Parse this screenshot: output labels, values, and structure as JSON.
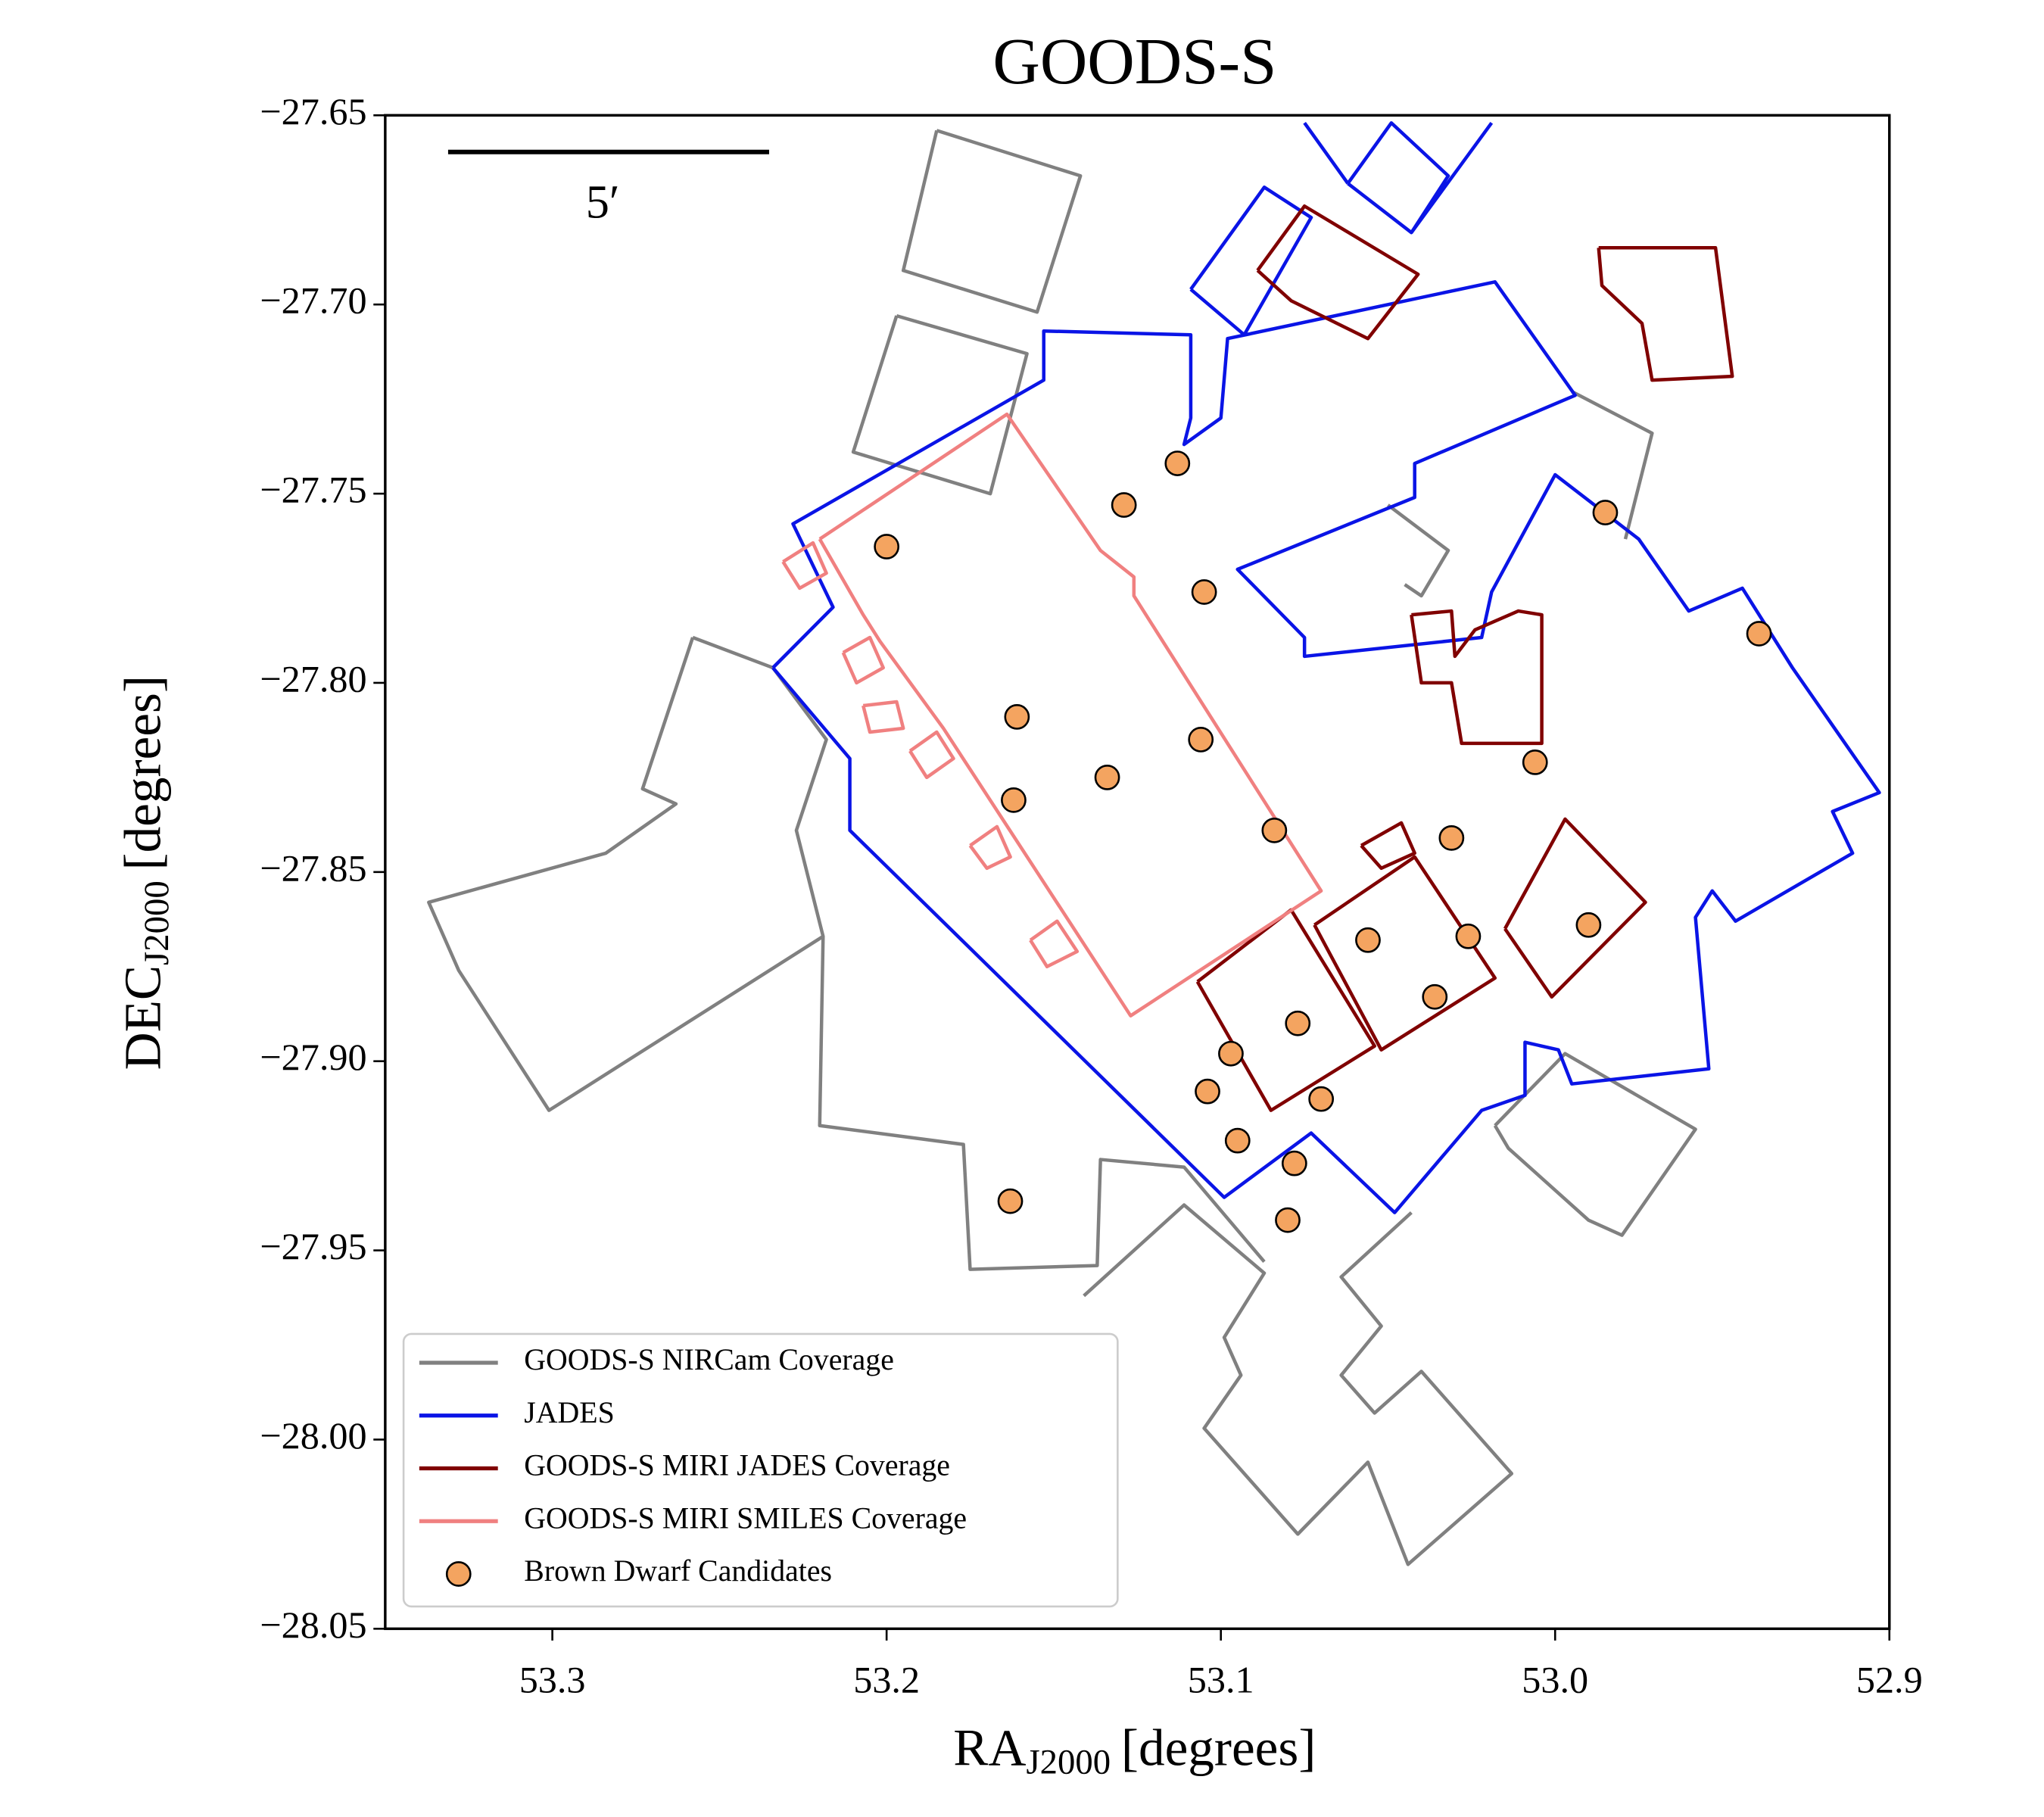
{
  "chart_data": {
    "type": "scatter",
    "title": "GOODS-S",
    "x_label": {
      "main": "RA",
      "sub": "J2000",
      "unit": "[degrees]"
    },
    "y_label": {
      "main": "DEC",
      "sub": "J2000",
      "unit": "[degrees]"
    },
    "scale_bar_label": "5′",
    "xlim": [
      53.35,
      52.9
    ],
    "ylim": [
      -28.05,
      -27.65
    ],
    "xticks": [
      53.3,
      53.2,
      53.1,
      {
        "value": 53,
        "label": "53.0"
      },
      52.9
    ],
    "yticks": [
      {
        "value": -27.65,
        "label": "−27.65"
      },
      {
        "value": -27.7,
        "label": "−27.70"
      },
      {
        "value": -27.75,
        "label": "−27.75"
      },
      {
        "value": -27.8,
        "label": "−27.80"
      },
      {
        "value": -27.85,
        "label": "−27.85"
      },
      {
        "value": -27.9,
        "label": "−27.90"
      },
      {
        "value": -27.95,
        "label": "−27.95"
      },
      {
        "value": -28,
        "label": "−28.00"
      },
      {
        "value": -28.05,
        "label": "−28.05"
      }
    ],
    "legend": "lower left",
    "series": [
      {
        "name": "GOODS-S NIRCam Coverage",
        "type": "line",
        "color": "#808080",
        "x": [
          53.258,
          53.234,
          53.218,
          53.227,
          53.219,
          53.301,
          53.328,
          53.337,
          53.284,
          53.263,
          53.273,
          53.258,
          null,
          53.219,
          53.22,
          53.177,
          53.175,
          53.137,
          53.136,
          53.111,
          53.087,
          null,
          53.141,
          53.111,
          53.087,
          53.099,
          53.094,
          53.105,
          53.077,
          53.056,
          53.044,
          53.013,
          53.04,
          53.054,
          53.064,
          53.052,
          53.064,
          53.043,
          null,
          53.018,
          52.997,
          52.958,
          52.98,
          52.99,
          53.014,
          53.018,
          null,
          52.995,
          52.971,
          52.979,
          null,
          53.05,
          53.032,
          53.04,
          53.045,
          null,
          53.185,
          53.142,
          53.155,
          53.195,
          53.185,
          null,
          53.197,
          53.158,
          53.169,
          53.21,
          53.197
        ],
        "y": [
          -27.788,
          -27.796,
          -27.815,
          -27.839,
          -27.867,
          -27.913,
          -27.876,
          -27.858,
          -27.845,
          -27.832,
          -27.828,
          -27.788,
          null,
          -27.867,
          -27.917,
          -27.922,
          -27.955,
          -27.954,
          -27.926,
          -27.928,
          -27.953,
          null,
          -27.962,
          -27.938,
          -27.956,
          -27.973,
          -27.983,
          -27.997,
          -28.025,
          -28.006,
          -28.033,
          -28.009,
          -27.982,
          -27.993,
          -27.983,
          -27.97,
          -27.957,
          -27.94,
          null,
          -27.917,
          -27.898,
          -27.918,
          -27.946,
          -27.942,
          -27.923,
          -27.917,
          null,
          -27.723,
          -27.734,
          -27.762,
          null,
          -27.753,
          -27.765,
          -27.777,
          -27.774,
          null,
          -27.654,
          -27.666,
          -27.702,
          -27.691,
          -27.654,
          null,
          -27.703,
          -27.713,
          -27.75,
          -27.739,
          -27.703
        ]
      },
      {
        "name": "JADES",
        "type": "line",
        "color": "#0a14e6",
        "x": [
          53.234,
          53.216,
          53.228,
          53.153,
          53.153,
          53.109,
          53.109,
          53.111,
          53.1,
          53.098,
          53.018,
          52.994,
          53.042,
          53.042,
          53.095,
          53.075,
          53.075,
          53.022,
          53.019,
          53.0,
          52.975,
          52.96,
          52.944,
          52.929,
          52.903,
          52.917,
          52.911,
          52.946,
          52.953,
          52.958,
          52.954,
          52.995,
          52.999,
          53.009,
          53.009,
          53.022,
          53.048,
          53.073,
          53.099,
          53.211,
          53.211,
          53.234,
          null,
          53.109,
          53.087,
          53.073,
          53.093,
          53.109,
          null,
          53.062,
          53.049,
          53.032,
          53.043,
          53.062,
          null,
          53.075,
          53.062,
          null,
          53.019,
          53.043
        ],
        "y": [
          -27.796,
          -27.78,
          -27.758,
          -27.72,
          -27.707,
          -27.708,
          -27.73,
          -27.737,
          -27.73,
          -27.709,
          -27.694,
          -27.724,
          -27.742,
          -27.751,
          -27.77,
          -27.788,
          -27.793,
          -27.788,
          -27.776,
          -27.745,
          -27.762,
          -27.781,
          -27.775,
          -27.796,
          -27.829,
          -27.834,
          -27.845,
          -27.863,
          -27.855,
          -27.862,
          -27.902,
          -27.906,
          -27.897,
          -27.895,
          -27.909,
          -27.913,
          -27.94,
          -27.919,
          -27.936,
          -27.839,
          -27.82,
          -27.796,
          null,
          -27.696,
          -27.669,
          -27.677,
          -27.708,
          -27.696,
          null,
          -27.668,
          -27.652,
          -27.666,
          -27.681,
          -27.668,
          null,
          -27.652,
          -27.668,
          null,
          -27.652,
          -27.681
        ]
      },
      {
        "name": "GOODS-S MIRI JADES Coverage",
        "type": "line",
        "color": "#800000",
        "x": [
          53.089,
          53.075,
          53.041,
          53.056,
          53.079,
          53.089,
          null,
          52.987,
          52.952,
          52.947,
          52.971,
          52.974,
          52.986,
          52.987,
          null,
          53.043,
          53.031,
          53.03,
          53.024,
          53.011,
          53.004,
          53.004,
          53.028,
          53.031,
          53.04,
          53.043,
          null,
          53.107,
          53.079,
          53.054,
          53.085,
          53.107,
          null,
          53.072,
          53.042,
          53.018,
          53.052,
          53.072,
          null,
          53.058,
          53.046,
          53.042,
          53.052,
          53.058,
          null,
          53.015,
          52.997,
          52.973,
          53.001,
          53.015
        ],
        "y": [
          -27.691,
          -27.674,
          -27.692,
          -27.709,
          -27.699,
          -27.691,
          null,
          -27.685,
          -27.685,
          -27.719,
          -27.72,
          -27.705,
          -27.695,
          -27.685,
          null,
          -27.782,
          -27.781,
          -27.793,
          -27.786,
          -27.781,
          -27.782,
          -27.816,
          -27.816,
          -27.8,
          -27.8,
          -27.782,
          null,
          -27.879,
          -27.86,
          -27.896,
          -27.913,
          -27.879,
          null,
          -27.864,
          -27.846,
          -27.878,
          -27.897,
          -27.864,
          null,
          -27.843,
          -27.837,
          -27.845,
          -27.849,
          -27.843,
          null,
          -27.865,
          -27.836,
          -27.858,
          -27.883,
          -27.865
        ]
      },
      {
        "name": "GOODS-S MIRI SMILES Coverage",
        "type": "line",
        "color": "#f08080",
        "x": [
          53.22,
          53.164,
          53.136,
          53.126,
          53.126,
          53.07,
          53.127,
          53.183,
          53.202,
          53.207,
          53.22,
          null,
          53.231,
          53.222,
          53.218,
          53.226,
          53.231,
          null,
          53.213,
          53.205,
          53.201,
          53.209,
          53.213,
          null,
          53.207,
          53.197,
          53.195,
          53.205,
          53.207,
          null,
          53.193,
          53.185,
          53.18,
          53.188,
          53.193,
          null,
          53.175,
          53.167,
          53.163,
          53.17,
          53.175,
          null,
          53.157,
          53.149,
          53.143,
          53.152,
          53.157
        ],
        "y": [
          -27.762,
          -27.729,
          -27.765,
          -27.772,
          -27.777,
          -27.855,
          -27.888,
          -27.812,
          -27.789,
          -27.782,
          -27.762,
          null,
          -27.768,
          -27.763,
          -27.771,
          -27.775,
          -27.768,
          null,
          -27.792,
          -27.788,
          -27.796,
          -27.8,
          -27.792,
          null,
          -27.806,
          -27.805,
          -27.812,
          -27.813,
          -27.806,
          null,
          -27.818,
          -27.813,
          -27.82,
          -27.825,
          -27.818,
          null,
          -27.843,
          -27.838,
          -27.846,
          -27.849,
          -27.843,
          null,
          -27.868,
          -27.863,
          -27.871,
          -27.875,
          -27.868
        ]
      },
      {
        "name": "Brown Dwarf Candidates",
        "type": "scatter",
        "color": "#f4a460",
        "x": [
          53.113,
          53.129,
          53.2,
          52.985,
          53.105,
          52.939,
          53.161,
          53.106,
          53.006,
          53.134,
          53.162,
          53.084,
          53.031,
          52.99,
          53.056,
          53.026,
          53.036,
          53.077,
          53.097,
          53.104,
          53.07,
          53.095,
          53.078,
          53.163,
          53.08
        ],
        "y": [
          -27.742,
          -27.753,
          -27.764,
          -27.755,
          -27.776,
          -27.787,
          -27.809,
          -27.815,
          -27.821,
          -27.825,
          -27.831,
          -27.839,
          -27.841,
          -27.864,
          -27.868,
          -27.867,
          -27.883,
          -27.89,
          -27.898,
          -27.908,
          -27.91,
          -27.921,
          -27.927,
          -27.937,
          -27.942
        ]
      }
    ]
  }
}
